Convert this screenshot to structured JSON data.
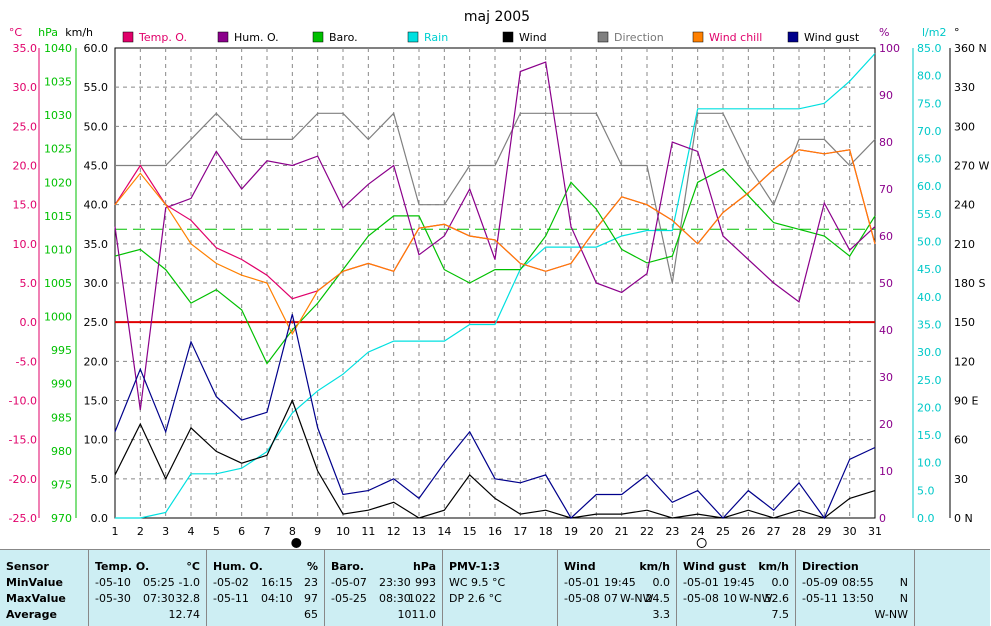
{
  "chart_data": {
    "type": "line",
    "title": "maj 2005",
    "x": [
      1,
      2,
      3,
      4,
      5,
      6,
      7,
      8,
      9,
      10,
      11,
      12,
      13,
      14,
      15,
      16,
      17,
      18,
      19,
      20,
      21,
      22,
      23,
      24,
      25,
      26,
      27,
      28,
      29,
      30,
      31
    ],
    "axes": {
      "temp": {
        "unit": "°C",
        "min": -25,
        "max": 35,
        "ticks": [
          "35.0",
          "30.0",
          "25.0",
          "20.0",
          "15.0",
          "10.0",
          "5.0",
          "0.0",
          "-5.0",
          "-10.0",
          "-15.0",
          "-20.0",
          "-25.0"
        ]
      },
      "baro": {
        "unit": "hPa",
        "min": 970,
        "max": 1040,
        "ticks": [
          "1040",
          "1035",
          "1030",
          "1025",
          "1020",
          "1015",
          "1010",
          "1005",
          "1000",
          "995",
          "990",
          "985",
          "980",
          "975",
          "970"
        ]
      },
      "wind": {
        "unit": "km/h",
        "min": 0,
        "max": 60,
        "ticks": [
          "60.0",
          "55.0",
          "50.0",
          "45.0",
          "40.0",
          "35.0",
          "30.0",
          "25.0",
          "20.0",
          "15.0",
          "10.0",
          "5.0",
          "0.0"
        ]
      },
      "hum": {
        "unit": "%",
        "min": 0,
        "max": 100,
        "ticks": [
          "100",
          "90",
          "80",
          "70",
          "60",
          "50",
          "40",
          "30",
          "20",
          "10",
          "0"
        ]
      },
      "rain": {
        "unit": "l/m2",
        "min": 0,
        "max": 85,
        "ticks": [
          "85.0",
          "80.0",
          "75.0",
          "70.0",
          "65.0",
          "60.0",
          "55.0",
          "50.0",
          "45.0",
          "40.0",
          "35.0",
          "30.0",
          "25.0",
          "20.0",
          "15.0",
          "10.0",
          "5.0",
          "0.0"
        ]
      },
      "dir": {
        "unit": "°",
        "min": 0,
        "max": 360,
        "ticks": [
          "360 N",
          "330",
          "300",
          "270 W",
          "240",
          "210",
          "180 S",
          "150",
          "120",
          "90 E",
          "60",
          "30",
          "0 N"
        ]
      }
    },
    "series": [
      {
        "name": "Temp. O.",
        "axis": "temp",
        "color": "#e0006a",
        "values": [
          15,
          20,
          15,
          13,
          9.5,
          8,
          6,
          3,
          4,
          6.5,
          7.5,
          6.5,
          12,
          12.5,
          11,
          10.5,
          7.5,
          6.5,
          7.5,
          12,
          16,
          15,
          13,
          10,
          14,
          16.5,
          19.5,
          22,
          21.5,
          22,
          10
        ]
      },
      {
        "name": "Hum. O.",
        "axis": "hum",
        "color": "#8b008b",
        "values": [
          62,
          23,
          66,
          68,
          78,
          70,
          76,
          75,
          77,
          66,
          71,
          75,
          56,
          60,
          70,
          55,
          95,
          97,
          62,
          50,
          48,
          52,
          80,
          78,
          60,
          55,
          50,
          46,
          67,
          57,
          62
        ]
      },
      {
        "name": "Baro.",
        "axis": "baro",
        "color": "#00c000",
        "values": [
          1009,
          1010,
          1007,
          1002,
          1004,
          1001,
          993,
          998,
          1002,
          1007,
          1012,
          1015,
          1015,
          1007,
          1005,
          1007,
          1007,
          1012,
          1020,
          1016,
          1010,
          1008,
          1009,
          1020,
          1022,
          1018,
          1014,
          1013,
          1012,
          1009,
          1015
        ]
      },
      {
        "name": "Rain",
        "axis": "rain",
        "color": "#00e0e0",
        "values": [
          0,
          0,
          1,
          8,
          8,
          9,
          12,
          19,
          23,
          26,
          30,
          32,
          32,
          32,
          35,
          35,
          45,
          49,
          49,
          49,
          51,
          52,
          52,
          74,
          74,
          74,
          74,
          74,
          75,
          79,
          84
        ]
      },
      {
        "name": "Wind",
        "axis": "wind",
        "color": "#000000",
        "values": [
          5.5,
          12,
          5,
          11.5,
          8.5,
          7,
          8,
          15,
          6,
          0.5,
          1,
          2,
          0,
          1,
          5.5,
          2.5,
          0.5,
          1,
          0,
          0.5,
          0.5,
          1,
          0,
          0.5,
          0,
          1,
          0,
          1,
          0,
          2.5,
          3.5
        ]
      },
      {
        "name": "Direction",
        "axis": "dir",
        "color": "#808080",
        "values": [
          270,
          270,
          270,
          290,
          310,
          290,
          290,
          290,
          310,
          310,
          290,
          310,
          240,
          240,
          270,
          270,
          310,
          310,
          310,
          310,
          270,
          270,
          180,
          310,
          310,
          270,
          240,
          290,
          290,
          270,
          290
        ]
      },
      {
        "name": "Wind chill",
        "axis": "temp",
        "color": "#ff8000",
        "values": [
          15,
          19,
          15,
          10,
          7.5,
          6,
          5,
          -1.5,
          4,
          6.5,
          7.5,
          6.5,
          12,
          12.5,
          11,
          10.5,
          7.5,
          6.5,
          7.5,
          12,
          16,
          15,
          13,
          10,
          14,
          16.5,
          19.5,
          22,
          21.5,
          22,
          10
        ]
      },
      {
        "name": "Wind gust",
        "axis": "wind",
        "color": "#00008b",
        "values": [
          11,
          19,
          11,
          22.5,
          15.5,
          12.5,
          13.5,
          26,
          11.5,
          3,
          3.5,
          5,
          2.5,
          7,
          11,
          5,
          4.5,
          5.5,
          0,
          3,
          3,
          5.5,
          2,
          3.5,
          0,
          3.5,
          1,
          4.5,
          0,
          7.5,
          9
        ]
      }
    ],
    "markers": [
      {
        "label": "8",
        "kind": "full moon"
      },
      {
        "label": "24",
        "kind": "new moon"
      }
    ]
  },
  "stats": {
    "sensor": {
      "header": "Sensor",
      "rows": [
        "MinValue",
        "MaxValue",
        "Average"
      ]
    },
    "temp": {
      "title": "Temp. O.",
      "unit": "°C",
      "min_date": "-05-10",
      "min_time": "05:25",
      "min_val": "-1.0",
      "max_date": "-05-30",
      "max_time": "07:30",
      "max_val": "32.8",
      "avg": "12.74"
    },
    "hum": {
      "title": "Hum. O.",
      "unit": "%",
      "min_date": "-05-02",
      "min_time": "16:15",
      "min_val": "23",
      "max_date": "-05-11",
      "max_time": "04:10",
      "max_val": "97",
      "avg": "65"
    },
    "baro": {
      "title": "Baro.",
      "unit": "hPa",
      "min_date": "-05-07",
      "min_time": "23:30",
      "min_val": "993",
      "max_date": "-05-25",
      "max_time": "08:30",
      "max_val": "1022",
      "avg": "1011.0"
    },
    "pmv": {
      "title": "PMV-1:3",
      "wc": "WC 9.5 °C",
      "dp": "DP 2.6 °C"
    },
    "wind": {
      "title": "Wind",
      "unit": "km/h",
      "min_date": "-05-01",
      "min_time": "19:45",
      "min_dir": "",
      "min_val": "0.0",
      "max_date": "-05-08",
      "max_time": "07",
      "max_dir": "W-NW",
      "max_val": "24.5",
      "avg": "3.3"
    },
    "gust": {
      "title": "Wind gust",
      "unit": "km/h",
      "min_date": "-05-01",
      "min_time": "19:45",
      "min_val": "0.0",
      "max_date": "-05-08",
      "max_time": "10",
      "max_dir": "W-NW",
      "max_val": "52.6",
      "avg": "7.5"
    },
    "dir": {
      "title": "Direction",
      "min_date": "-05-09",
      "min_time": "08:55",
      "min_val": "N",
      "max_date": "-05-11",
      "max_time": "13:50",
      "max_val": "N",
      "avg": "W-NW"
    }
  }
}
